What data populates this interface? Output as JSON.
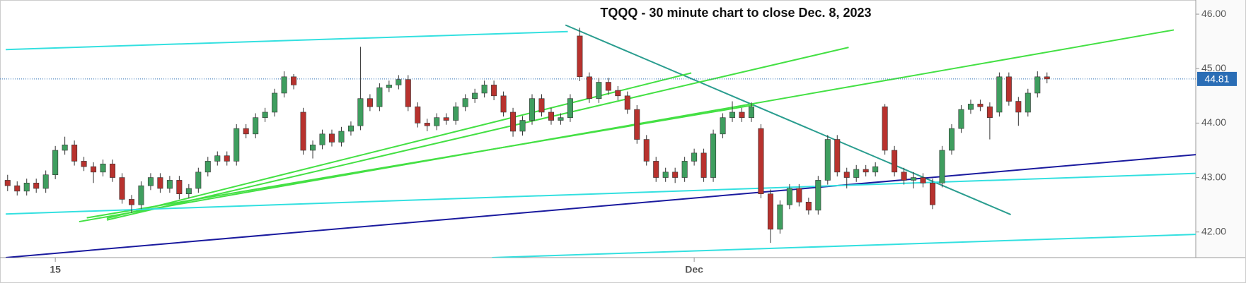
{
  "chart_data": {
    "type": "candlestick",
    "title": "TQQQ - 30 minute chart to close Dec. 8, 2023",
    "ylim": [
      41.53,
      46.26
    ],
    "yticks": [
      {
        "value": 42,
        "label": "42.00"
      },
      {
        "value": 43,
        "label": "43.00"
      },
      {
        "value": 44,
        "label": "44.00"
      },
      {
        "value": 45,
        "label": "45.00"
      },
      {
        "value": 46,
        "label": "46.00"
      }
    ],
    "xlim": [
      -0.8,
      124.6
    ],
    "xticks": [
      {
        "value": 5,
        "label": "15"
      },
      {
        "value": 72,
        "label": "Dec"
      }
    ],
    "up_color": "#3f9e5f",
    "down_color": "#b8322e",
    "last_price": 44.81,
    "last_price_color": "#2a6db5",
    "open": [
      42.95,
      42.85,
      42.75,
      42.9,
      42.8,
      43.05,
      43.5,
      43.6,
      43.3,
      43.2,
      43.1,
      43.25,
      43.0,
      42.6,
      42.5,
      42.85,
      43.0,
      42.8,
      42.95,
      42.7,
      42.8,
      43.1,
      43.3,
      43.4,
      43.3,
      43.9,
      43.8,
      44.1,
      44.2,
      44.55,
      44.85,
      44.2,
      43.5,
      43.6,
      43.8,
      43.65,
      43.85,
      43.95,
      44.45,
      44.3,
      44.65,
      44.7,
      44.8,
      44.3,
      44.0,
      43.95,
      44.1,
      44.05,
      44.3,
      44.45,
      44.55,
      44.7,
      44.5,
      44.2,
      43.85,
      44.05,
      44.45,
      44.2,
      44.05,
      44.1,
      45.6,
      44.85,
      44.45,
      44.75,
      44.6,
      44.5,
      44.25,
      43.7,
      43.3,
      43.0,
      43.1,
      43.0,
      43.3,
      43.45,
      43.0,
      43.8,
      44.1,
      44.2,
      44.1,
      43.9,
      42.7,
      42.05,
      42.5,
      42.8,
      42.55,
      42.4,
      42.95,
      43.7,
      43.1,
      43.0,
      43.15,
      43.1,
      44.3,
      43.5,
      43.1,
      42.95,
      43.0,
      42.9,
      42.9,
      43.5,
      43.9,
      44.25,
      44.35,
      44.3,
      44.2,
      44.85,
      44.4,
      44.2,
      44.55,
      44.85
    ],
    "high": [
      43.05,
      42.93,
      42.98,
      42.98,
      43.13,
      43.58,
      43.75,
      43.68,
      43.38,
      43.28,
      43.33,
      43.33,
      43.08,
      42.68,
      42.93,
      43.08,
      43.08,
      43.03,
      43.03,
      42.88,
      43.18,
      43.38,
      43.48,
      43.48,
      43.98,
      43.98,
      44.18,
      44.28,
      44.63,
      44.95,
      44.9,
      44.28,
      43.68,
      43.88,
      43.88,
      43.93,
      44.03,
      45.4,
      44.53,
      44.73,
      44.78,
      44.88,
      44.88,
      44.38,
      44.08,
      44.18,
      44.18,
      44.38,
      44.53,
      44.63,
      44.78,
      44.78,
      44.58,
      44.28,
      44.13,
      44.53,
      44.53,
      44.28,
      44.18,
      44.53,
      45.75,
      44.93,
      44.83,
      44.83,
      44.68,
      44.58,
      44.33,
      43.78,
      43.38,
      43.18,
      43.18,
      43.38,
      43.53,
      43.53,
      43.88,
      44.18,
      44.4,
      44.28,
      44.38,
      43.98,
      42.78,
      42.58,
      42.88,
      42.88,
      42.63,
      43.03,
      43.78,
      43.78,
      43.18,
      43.23,
      43.23,
      43.28,
      44.35,
      43.58,
      43.18,
      43.1,
      43.08,
      42.98,
      43.58,
      43.98,
      44.33,
      44.43,
      44.43,
      44.38,
      44.93,
      44.93,
      44.48,
      44.63,
      44.95,
      44.93
    ],
    "low": [
      42.75,
      42.67,
      42.67,
      42.72,
      42.72,
      42.97,
      43.42,
      43.22,
      43.12,
      42.9,
      43.02,
      42.92,
      42.52,
      42.35,
      42.42,
      42.77,
      42.72,
      42.72,
      42.6,
      42.62,
      42.72,
      43.02,
      43.22,
      43.22,
      43.22,
      43.72,
      43.72,
      44.02,
      44.12,
      44.47,
      44.62,
      43.42,
      43.35,
      43.52,
      43.57,
      43.57,
      43.77,
      43.87,
      44.22,
      44.22,
      44.57,
      44.62,
      44.22,
      43.92,
      43.85,
      43.87,
      43.97,
      43.97,
      44.22,
      44.37,
      44.47,
      44.42,
      44.12,
      43.75,
      43.77,
      43.97,
      44.12,
      43.97,
      43.97,
      44.02,
      44.77,
      44.37,
      44.37,
      44.52,
      44.42,
      44.17,
      43.62,
      43.22,
      42.92,
      42.92,
      42.9,
      42.92,
      43.22,
      42.92,
      42.92,
      43.72,
      44.02,
      44.02,
      44.02,
      42.62,
      41.8,
      41.97,
      42.42,
      42.47,
      42.32,
      42.32,
      42.87,
      43.02,
      42.8,
      42.92,
      43.02,
      43.02,
      43.42,
      43.02,
      42.87,
      42.8,
      42.82,
      42.42,
      42.82,
      43.42,
      43.82,
      44.17,
      44.22,
      43.7,
      44.12,
      44.32,
      43.95,
      44.12,
      44.47,
      44.73
    ],
    "close": [
      42.85,
      42.75,
      42.9,
      42.8,
      43.05,
      43.5,
      43.6,
      43.3,
      43.2,
      43.1,
      43.25,
      43.0,
      42.6,
      42.5,
      42.85,
      43.0,
      42.8,
      42.95,
      42.7,
      42.8,
      43.1,
      43.3,
      43.4,
      43.3,
      43.9,
      43.8,
      44.1,
      44.2,
      44.55,
      44.85,
      44.7,
      43.5,
      43.6,
      43.8,
      43.65,
      43.85,
      43.95,
      44.45,
      44.3,
      44.65,
      44.7,
      44.8,
      44.3,
      44.0,
      43.95,
      44.1,
      44.05,
      44.3,
      44.45,
      44.55,
      44.7,
      44.5,
      44.2,
      43.85,
      44.05,
      44.45,
      44.2,
      44.05,
      44.1,
      44.45,
      44.85,
      44.45,
      44.75,
      44.6,
      44.5,
      44.25,
      43.7,
      43.3,
      43.0,
      43.1,
      43.0,
      43.3,
      43.45,
      43.0,
      43.8,
      44.1,
      44.2,
      44.1,
      44.3,
      42.7,
      42.05,
      42.5,
      42.8,
      42.55,
      42.4,
      42.95,
      43.7,
      43.1,
      43.0,
      43.15,
      43.1,
      43.2,
      43.5,
      43.1,
      42.95,
      43.0,
      42.9,
      42.5,
      43.5,
      43.9,
      44.25,
      44.35,
      44.3,
      44.1,
      44.85,
      44.4,
      44.2,
      44.55,
      44.85,
      44.81
    ],
    "trend_lines": [
      {
        "color": "#33e0e0",
        "x": [
          -0.2,
          58.75
        ],
        "y": [
          45.35,
          45.68
        ]
      },
      {
        "color": "#2a9d8f",
        "x": [
          58.5,
          105.2
        ],
        "y": [
          45.8,
          42.32
        ]
      },
      {
        "color": "#44e044",
        "x": [
          7.5,
          122.3
        ],
        "y": [
          42.19,
          45.71
        ]
      },
      {
        "color": "#44e044",
        "x": [
          10.4,
          88.2
        ],
        "y": [
          42.22,
          45.39
        ]
      },
      {
        "color": "#44e044",
        "x": [
          10.4,
          71.7
        ],
        "y": [
          42.25,
          44.92
        ]
      },
      {
        "color": "#44e044",
        "x": [
          8.3,
          78.2
        ],
        "y": [
          42.26,
          44.33
        ]
      },
      {
        "color": "#1a1a9e",
        "x": [
          -0.2,
          125.2
        ],
        "y": [
          41.53,
          43.43
        ]
      },
      {
        "color": "#33e0e0",
        "x": [
          -0.2,
          125.2
        ],
        "y": [
          42.33,
          43.08
        ]
      },
      {
        "color": "#33e0e0",
        "x": [
          50.8,
          125.2
        ],
        "y": [
          41.53,
          41.96
        ]
      }
    ]
  }
}
